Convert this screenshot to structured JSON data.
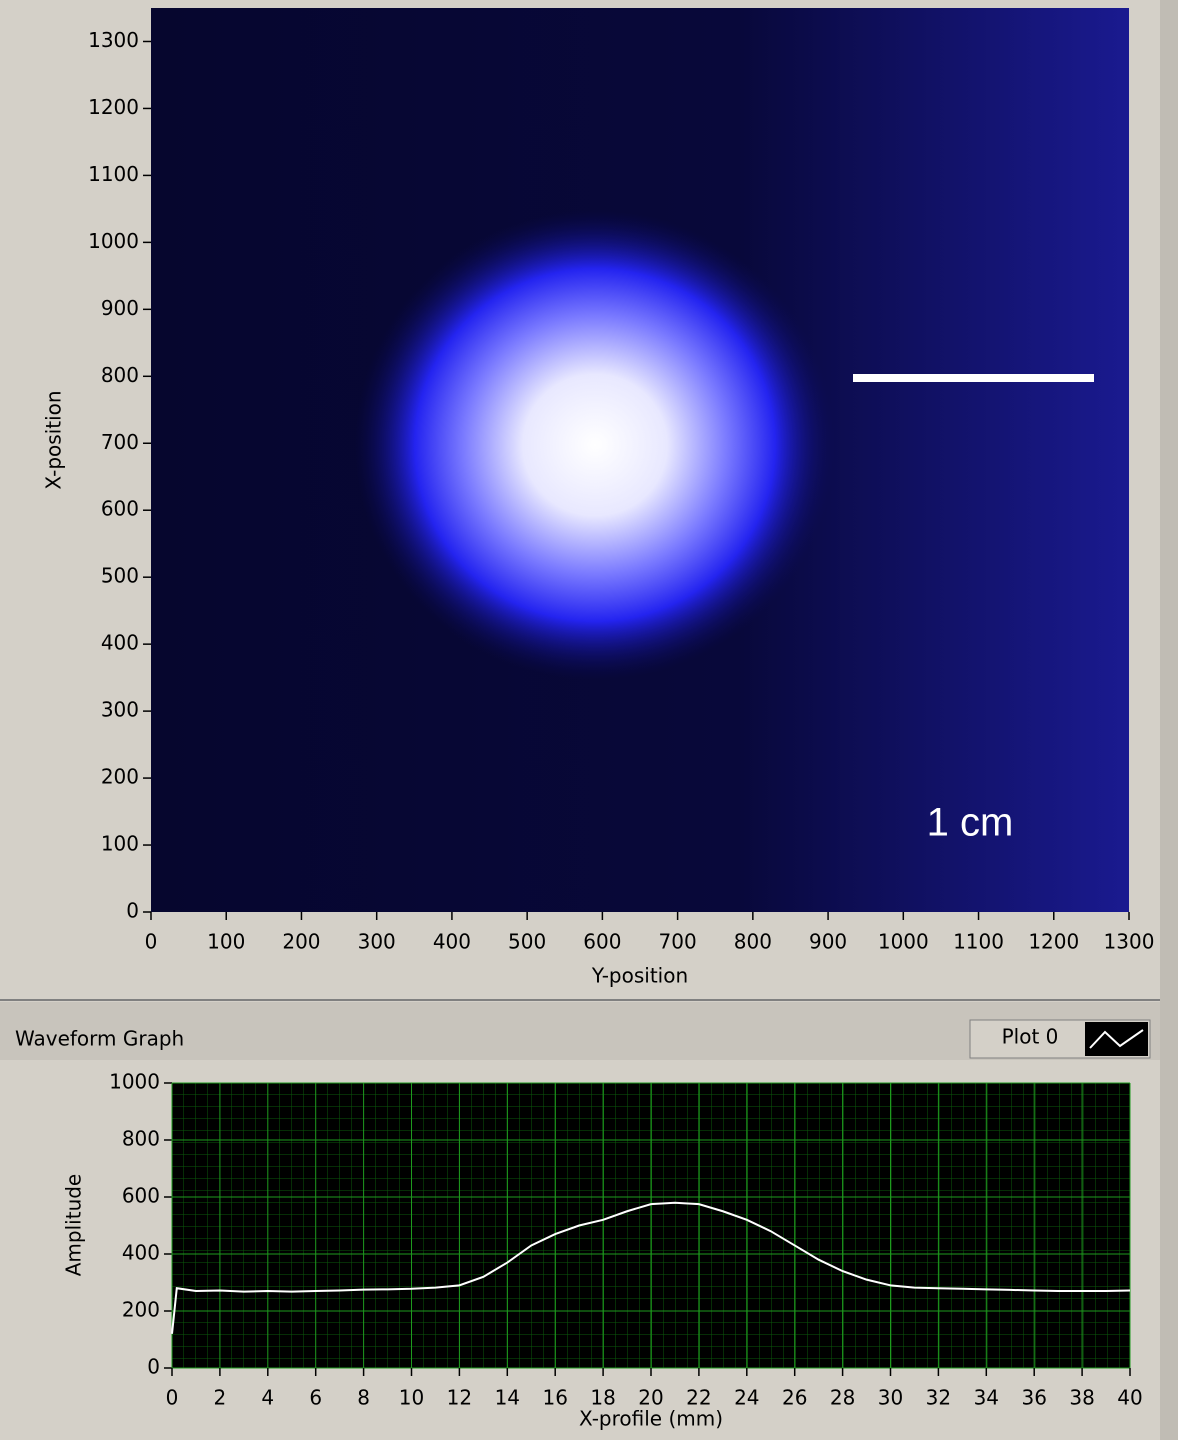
{
  "chart_data": [
    {
      "type": "image",
      "xlabel": "Y-position",
      "ylabel": "X-position",
      "xlim": [
        0,
        1300
      ],
      "ylim": [
        0,
        1350
      ],
      "xticks": [
        0,
        100,
        200,
        300,
        400,
        500,
        600,
        700,
        800,
        900,
        1000,
        1100,
        1200,
        1300
      ],
      "yticks": [
        0,
        100,
        200,
        300,
        400,
        500,
        600,
        700,
        800,
        900,
        1000,
        1100,
        1200,
        1300
      ],
      "annotation": "1 cm",
      "grid": false
    },
    {
      "type": "line",
      "title": "Waveform Graph",
      "xlabel": "X-profile (mm)",
      "ylabel": "Amplitude",
      "xlim": [
        0,
        40
      ],
      "ylim": [
        0,
        1000
      ],
      "xticks": [
        0,
        2,
        4,
        6,
        8,
        10,
        12,
        14,
        16,
        18,
        20,
        22,
        24,
        26,
        28,
        30,
        32,
        34,
        36,
        38,
        40
      ],
      "yticks": [
        0,
        200,
        400,
        600,
        800,
        1000
      ],
      "grid": true,
      "x": [
        0,
        0.2,
        1,
        2,
        3,
        4,
        5,
        6,
        7,
        8,
        9,
        10,
        11,
        12,
        13,
        14,
        15,
        16,
        17,
        18,
        19,
        20,
        21,
        22,
        23,
        24,
        25,
        26,
        27,
        28,
        29,
        30,
        31,
        32,
        33,
        34,
        35,
        36,
        37,
        38,
        39,
        40
      ],
      "series": [
        {
          "name": "Plot 0",
          "color": "#ffffff",
          "values": [
            120,
            280,
            270,
            272,
            268,
            270,
            268,
            270,
            272,
            275,
            276,
            278,
            282,
            290,
            320,
            370,
            430,
            470,
            500,
            520,
            550,
            575,
            580,
            575,
            550,
            520,
            480,
            430,
            380,
            340,
            310,
            290,
            282,
            280,
            278,
            276,
            274,
            272,
            270,
            270,
            270,
            272
          ]
        }
      ]
    }
  ]
}
